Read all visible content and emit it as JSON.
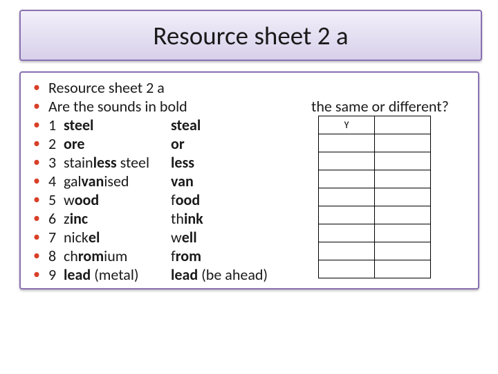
{
  "title": "Resource sheet 2 a",
  "subheading": "Resource sheet 2 a",
  "question_left": "Are the sounds in bold",
  "question_right": "the same or different?",
  "items": [
    {
      "n": "1",
      "a_pre": "",
      "a_bold": "steel",
      "a_post": "",
      "b_pre": "",
      "b_bold": "steal",
      "b_post": ""
    },
    {
      "n": "2",
      "a_pre": "",
      "a_bold": "ore",
      "a_post": "",
      "b_pre": "",
      "b_bold": "or",
      "b_post": ""
    },
    {
      "n": "3",
      "a_pre": "stain",
      "a_bold": "less",
      "a_post": " steel",
      "b_pre": "",
      "b_bold": "less",
      "b_post": ""
    },
    {
      "n": "4",
      "a_pre": "gal",
      "a_bold": "van",
      "a_post": "ised",
      "b_pre": "",
      "b_bold": "van",
      "b_post": ""
    },
    {
      "n": "5",
      "a_pre": "w",
      "a_bold": "ood",
      "a_post": "",
      "b_pre": "f",
      "b_bold": "ood",
      "b_post": ""
    },
    {
      "n": "6",
      "a_pre": "z",
      "a_bold": "inc",
      "a_post": "",
      "b_pre": "th",
      "b_bold": "ink",
      "b_post": ""
    },
    {
      "n": "7",
      "a_pre": "nick",
      "a_bold": "el",
      "a_post": "",
      "b_pre": "w",
      "b_bold": "ell",
      "b_post": ""
    },
    {
      "n": "8",
      "a_pre": "ch",
      "a_bold": "rom",
      "a_post": "ium",
      "b_pre": "f",
      "b_bold": "rom",
      "b_post": ""
    },
    {
      "n": "9",
      "a_pre": "",
      "a_bold": "lead",
      "a_post": " (metal)",
      "b_pre": "",
      "b_bold": "lead",
      "b_post": " (be ahead)"
    }
  ],
  "answers": [
    [
      "Y",
      ""
    ],
    [
      "",
      ""
    ],
    [
      "",
      ""
    ],
    [
      "",
      ""
    ],
    [
      "",
      ""
    ],
    [
      "",
      ""
    ],
    [
      "",
      ""
    ],
    [
      "",
      ""
    ],
    [
      "",
      ""
    ]
  ],
  "colors": {
    "title_border": "#8870b0",
    "title_grad_top": "#f2effa",
    "title_grad_bottom": "#d8d0ea",
    "bullet": "#d84028",
    "text": "#1a1a1a",
    "table_border": "#000000",
    "background": "#ffffff"
  },
  "bullet_char": "•"
}
